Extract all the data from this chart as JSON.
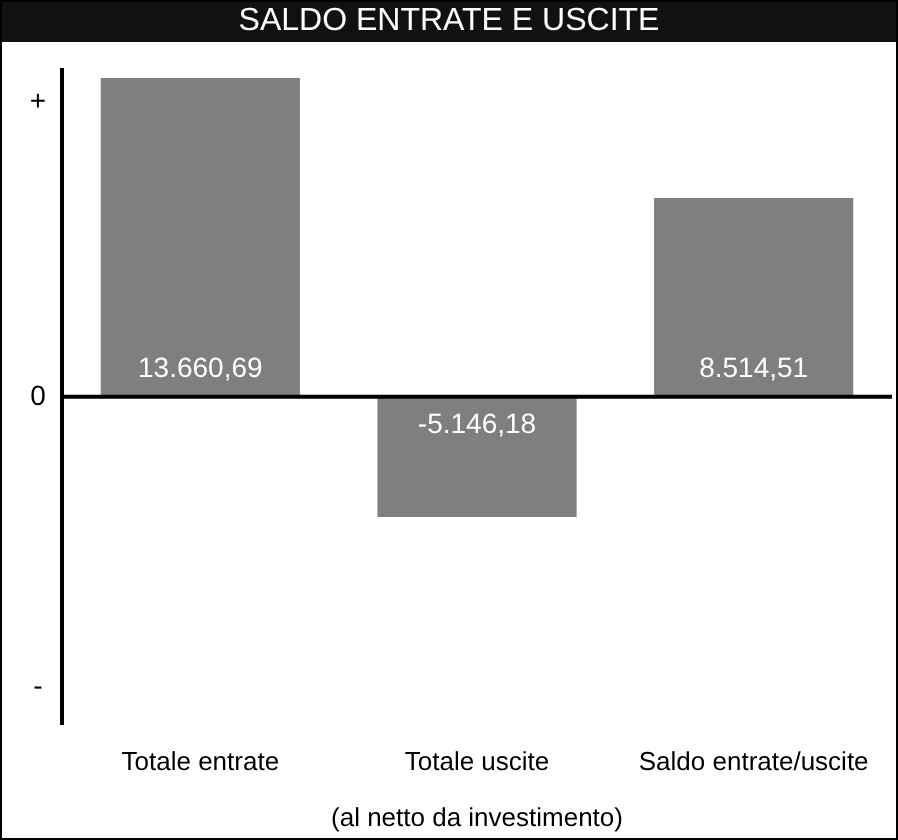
{
  "chart_data": {
    "type": "bar",
    "title": "SALDO ENTRATE E USCITE",
    "xlabel": "(al netto da investimento)",
    "categories": [
      "Totale entrate",
      "Totale uscite",
      "Saldo entrate/uscite"
    ],
    "values": [
      13660.69,
      -5146.18,
      8514.51
    ],
    "value_labels": [
      "13.660,69",
      "-5.146,18",
      "8.514,51"
    ],
    "color": "#7f7f7f",
    "ylim": [
      -14000,
      14000
    ],
    "tick_labels": "x",
    "annotations": [
      "+",
      "0",
      "-"
    ]
  }
}
